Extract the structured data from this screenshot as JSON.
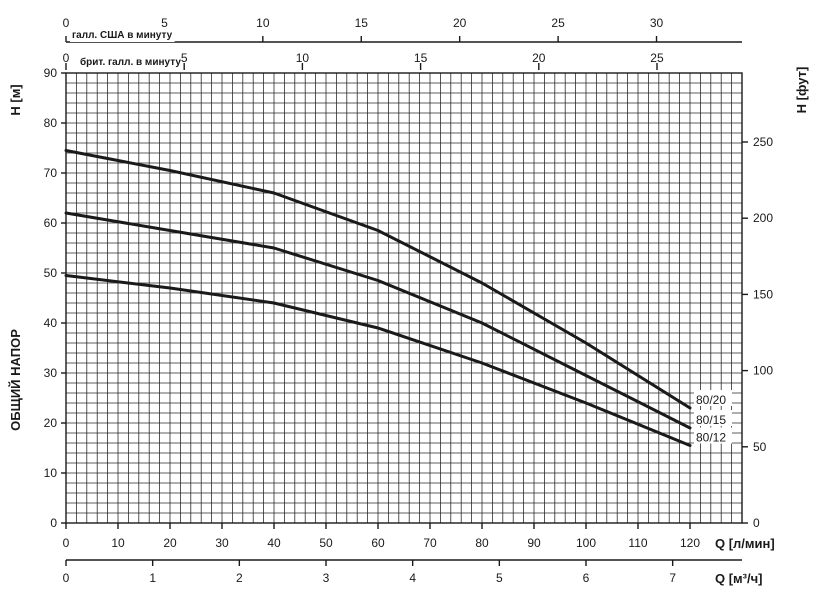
{
  "chart_data": {
    "type": "line",
    "left_axis": {
      "label": "H [м]",
      "side_label": "ОБЩИЙ НАПОР",
      "ticks": [
        "0",
        "10",
        "20",
        "30",
        "40",
        "50",
        "60",
        "70",
        "80",
        "90"
      ],
      "range": [
        0,
        90
      ],
      "minor_step": 2
    },
    "right_axis": {
      "label": "H [фут]",
      "ticks": [
        "0",
        "50",
        "100",
        "150",
        "200",
        "250"
      ],
      "values_ft": [
        0,
        50,
        100,
        150,
        200,
        250
      ]
    },
    "bottom_axis": {
      "label": "Q [л/мин]",
      "ticks": [
        "0",
        "10",
        "20",
        "30",
        "40",
        "50",
        "60",
        "70",
        "80",
        "90",
        "100",
        "110",
        "120"
      ],
      "range": [
        0,
        130
      ],
      "minor_step": 2
    },
    "m3h_axis": {
      "label": "Q [м³/ч]",
      "ticks": [
        "0",
        "1",
        "2",
        "3",
        "4",
        "5",
        "6",
        "7"
      ]
    },
    "us_gpm_axis": {
      "label": "галл. США в минуту",
      "ticks": [
        "0",
        "5",
        "10",
        "15",
        "20",
        "25",
        "30"
      ]
    },
    "uk_gpm_axis": {
      "label": "брит. галл. в минуту",
      "ticks": [
        "0",
        "5",
        "10",
        "15",
        "20",
        "25"
      ]
    },
    "grid": true,
    "series": [
      {
        "name": "80/20",
        "x": [
          0,
          20,
          40,
          60,
          80,
          100,
          120
        ],
        "y": [
          74.5,
          70.5,
          66,
          58.5,
          48,
          36,
          23
        ]
      },
      {
        "name": "80/15",
        "x": [
          0,
          20,
          40,
          60,
          80,
          100,
          120
        ],
        "y": [
          62,
          58.5,
          55,
          48.5,
          40,
          29.5,
          19
        ]
      },
      {
        "name": "80/12",
        "x": [
          0,
          20,
          40,
          60,
          80,
          100,
          120
        ],
        "y": [
          49.5,
          47,
          44,
          39,
          32,
          24,
          15.5
        ]
      }
    ]
  }
}
